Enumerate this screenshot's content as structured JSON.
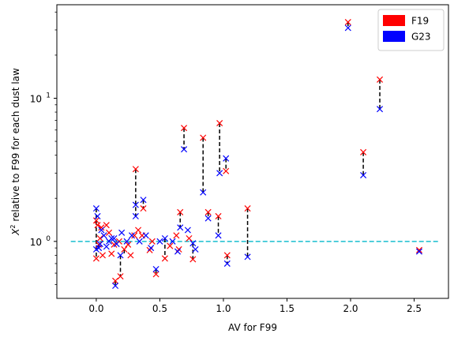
{
  "chart_data": {
    "type": "scatter",
    "title": "",
    "xlabel": "AV for F99",
    "ylabel_parts": [
      "X",
      "2",
      " relative to F99 for each dust law"
    ],
    "xlim": [
      -0.31,
      2.77
    ],
    "ylim": [
      0.4,
      45
    ],
    "yscale": "log",
    "x_ticks": [
      0.0,
      0.5,
      1.0,
      1.5,
      2.0,
      2.5
    ],
    "x_tick_labels": [
      "0.0",
      "0.5",
      "1.0",
      "1.5",
      "2.0",
      "2.5"
    ],
    "y_major_ticks": [
      1,
      10
    ],
    "y_major_base": "10",
    "y_major_exponents": [
      "0",
      "1"
    ],
    "y_minor_ticks": [
      0.5,
      0.6,
      0.7,
      0.8,
      0.9,
      2,
      3,
      4,
      5,
      6,
      7,
      8,
      9,
      20,
      30,
      40
    ],
    "reference_line": {
      "y": 1.0,
      "x_range": [
        -0.2,
        2.7
      ],
      "color": "#17becf",
      "style": "dashed"
    },
    "legend": {
      "placement": "top-right"
    },
    "series": [
      {
        "name": "F19",
        "color": "#ff0000",
        "marker": "x",
        "points": [
          [
            1.98,
            34.0
          ],
          [
            2.23,
            13.5
          ],
          [
            2.1,
            4.2
          ],
          [
            2.54,
            0.87
          ],
          [
            0.97,
            6.7
          ],
          [
            0.69,
            6.2
          ],
          [
            0.84,
            5.3
          ],
          [
            1.02,
            3.1
          ],
          [
            0.31,
            3.2
          ],
          [
            0.37,
            1.7
          ],
          [
            1.19,
            1.7
          ],
          [
            0.66,
            1.6
          ],
          [
            0.88,
            1.6
          ],
          [
            0.96,
            1.5
          ],
          [
            1.03,
            0.8
          ],
          [
            0.76,
            0.75
          ],
          [
            0.54,
            0.76
          ],
          [
            0.47,
            0.59
          ],
          [
            0.19,
            0.57
          ],
          [
            0.15,
            0.53
          ],
          [
            0.0,
            1.4
          ],
          [
            0.01,
            1.3
          ],
          [
            0.04,
            1.25
          ],
          [
            0.08,
            1.3
          ],
          [
            0.1,
            1.15
          ],
          [
            0.03,
            1.05
          ],
          [
            0.02,
            0.95
          ],
          [
            0.0,
            0.76
          ],
          [
            0.05,
            0.8
          ],
          [
            0.12,
            0.82
          ],
          [
            0.22,
            0.88
          ],
          [
            0.27,
            0.8
          ],
          [
            0.18,
            1.0
          ],
          [
            0.25,
            0.95
          ],
          [
            0.33,
            1.2
          ],
          [
            0.36,
            1.1
          ],
          [
            0.42,
            0.87
          ],
          [
            0.44,
            1.0
          ],
          [
            0.58,
            0.93
          ],
          [
            0.63,
            1.1
          ],
          [
            0.65,
            0.88
          ],
          [
            0.73,
            1.05
          ],
          [
            0.3,
            1.1
          ],
          [
            0.14,
            0.95
          ]
        ]
      },
      {
        "name": "G23",
        "color": "#0000ff",
        "marker": "x",
        "points": [
          [
            1.98,
            31.0
          ],
          [
            2.23,
            8.4
          ],
          [
            2.1,
            2.9
          ],
          [
            2.54,
            0.85
          ],
          [
            0.97,
            3.0
          ],
          [
            0.69,
            4.4
          ],
          [
            0.84,
            2.2
          ],
          [
            1.02,
            3.8
          ],
          [
            0.31,
            1.8
          ],
          [
            0.37,
            1.95
          ],
          [
            1.19,
            0.78
          ],
          [
            0.66,
            1.25
          ],
          [
            0.88,
            1.45
          ],
          [
            0.96,
            1.1
          ],
          [
            1.03,
            0.7
          ],
          [
            0.76,
            0.97
          ],
          [
            0.54,
            1.05
          ],
          [
            0.47,
            0.64
          ],
          [
            0.19,
            0.8
          ],
          [
            0.15,
            0.49
          ],
          [
            0.0,
            1.7
          ],
          [
            0.01,
            1.5
          ],
          [
            0.04,
            1.2
          ],
          [
            0.06,
            1.1
          ],
          [
            0.1,
            1.0
          ],
          [
            0.03,
            0.96
          ],
          [
            0.02,
            0.9
          ],
          [
            0.0,
            0.88
          ],
          [
            0.08,
            0.92
          ],
          [
            0.12,
            1.05
          ],
          [
            0.16,
            0.96
          ],
          [
            0.2,
            1.15
          ],
          [
            0.24,
            1.0
          ],
          [
            0.28,
            1.1
          ],
          [
            0.31,
            1.5
          ],
          [
            0.34,
            1.0
          ],
          [
            0.39,
            1.1
          ],
          [
            0.43,
            0.9
          ],
          [
            0.5,
            1.0
          ],
          [
            0.6,
            1.0
          ],
          [
            0.64,
            0.85
          ],
          [
            0.72,
            1.2
          ],
          [
            0.78,
            0.88
          ],
          [
            0.14,
            1.05
          ]
        ]
      }
    ],
    "connectors": [
      {
        "x": 1.98,
        "y": [
          34.0,
          31.0
        ]
      },
      {
        "x": 2.23,
        "y": [
          13.5,
          8.4
        ]
      },
      {
        "x": 2.1,
        "y": [
          4.2,
          2.9
        ]
      },
      {
        "x": 0.97,
        "y": [
          6.7,
          3.0
        ]
      },
      {
        "x": 0.69,
        "y": [
          6.2,
          4.4
        ]
      },
      {
        "x": 0.84,
        "y": [
          5.3,
          2.2
        ]
      },
      {
        "x": 1.02,
        "y": [
          3.8,
          3.1
        ]
      },
      {
        "x": 0.31,
        "y": [
          3.2,
          1.5
        ]
      },
      {
        "x": 0.37,
        "y": [
          1.95,
          1.7
        ]
      },
      {
        "x": 1.19,
        "y": [
          1.7,
          0.78
        ]
      },
      {
        "x": 0.66,
        "y": [
          1.6,
          1.25
        ]
      },
      {
        "x": 0.88,
        "y": [
          1.6,
          1.45
        ]
      },
      {
        "x": 0.96,
        "y": [
          1.5,
          1.1
        ]
      },
      {
        "x": 1.03,
        "y": [
          0.8,
          0.7
        ]
      },
      {
        "x": 0.76,
        "y": [
          0.97,
          0.75
        ]
      },
      {
        "x": 0.54,
        "y": [
          1.05,
          0.76
        ]
      },
      {
        "x": 0.47,
        "y": [
          0.64,
          0.59
        ]
      },
      {
        "x": 0.19,
        "y": [
          0.8,
          0.57
        ]
      },
      {
        "x": 0.15,
        "y": [
          0.53,
          0.49
        ]
      },
      {
        "x": 0.0,
        "y": [
          1.7,
          0.76
        ]
      },
      {
        "x": 0.02,
        "y": [
          0.95,
          0.9
        ]
      },
      {
        "x": 0.22,
        "y": [
          0.88,
          0.8
        ]
      }
    ]
  }
}
